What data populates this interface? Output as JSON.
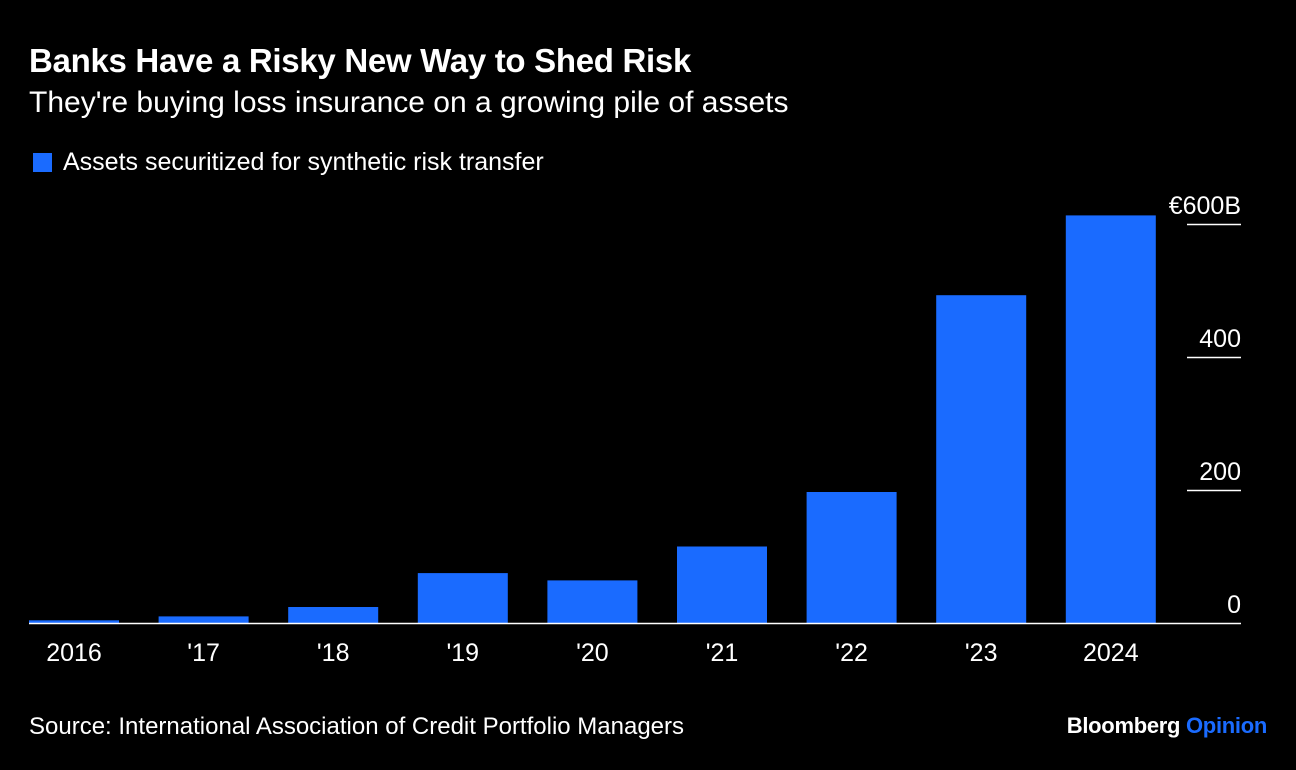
{
  "header": {
    "title": "Banks Have a Risky New Way to Shed Risk",
    "subtitle": "They're buying loss insurance on a growing pile of assets"
  },
  "colors": {
    "background": "#000000",
    "bar": "#1a6bff",
    "text": "#ffffff",
    "brand_accent": "#1a6bff"
  },
  "chart_data": {
    "type": "bar",
    "title": "Banks Have a Risky New Way to Shed Risk",
    "subtitle": "They're buying loss insurance on a growing pile of assets",
    "categories": [
      "2016",
      "'17",
      "'18",
      "'19",
      "'20",
      "'21",
      "'22",
      "'23",
      "2024"
    ],
    "series": [
      {
        "name": "Assets securitized for synthetic risk transfer",
        "values": [
          4,
          10,
          24,
          75,
          64,
          115,
          197,
          493,
          613
        ]
      }
    ],
    "y_ticks": [
      {
        "value": 0,
        "label": "0"
      },
      {
        "value": 200,
        "label": "200"
      },
      {
        "value": 400,
        "label": "400"
      },
      {
        "value": 600,
        "label": "€600B"
      }
    ],
    "ylim": [
      0,
      615
    ],
    "xlabel": "",
    "ylabel": "",
    "grid": false,
    "legend_position": "top-left",
    "y_axis_position": "right"
  },
  "legend": {
    "label": "Assets securitized for synthetic risk transfer"
  },
  "footer": {
    "source": "Source: International Association of Credit Portfolio Managers",
    "brand_name": "Bloomberg",
    "brand_section": "Opinion"
  }
}
